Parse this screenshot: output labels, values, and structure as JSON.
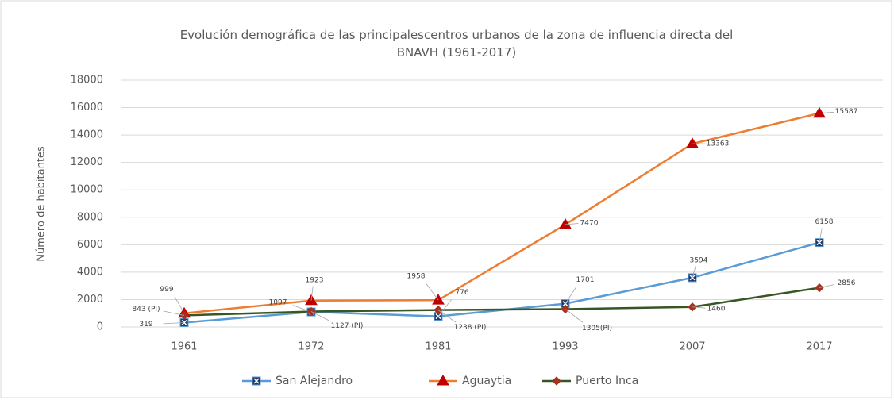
{
  "chart_data": {
    "type": "line",
    "title": "Evolución demográfica de las principalescentros urbanos de la zona de influencia directa del BNAVH (1961-2017)",
    "ylabel": "Número de habitantes",
    "categories": [
      "1961",
      "1972",
      "1981",
      "1993",
      "2007",
      "2017"
    ],
    "series": [
      {
        "name": "San Alejandro",
        "color": "#5b9bd5",
        "marker": "square",
        "marker_color": "#1f3864",
        "values": [
          319,
          1097,
          776,
          1701,
          3594,
          6158
        ]
      },
      {
        "name": "Aguaytia",
        "color": "#ed7d31",
        "marker": "triangle",
        "marker_color": "#c00000",
        "values": [
          999,
          1923,
          1958,
          7470,
          13363,
          15587
        ]
      },
      {
        "name": "Puerto Inca",
        "color": "#375623",
        "marker": "diamond",
        "marker_color": "#a5321e",
        "values": [
          843,
          1127,
          1238,
          1305,
          1460,
          2856
        ],
        "value_labels": [
          "843 (PI)",
          "1127 (PI)",
          "1238 (PI)",
          "1305(PI)",
          "1460",
          "2856"
        ]
      }
    ],
    "ylim": [
      0,
      18000
    ],
    "yticks": [
      0,
      2000,
      4000,
      6000,
      8000,
      10000,
      12000,
      14000,
      16000,
      18000
    ],
    "grid": true,
    "legend": "bottom"
  }
}
